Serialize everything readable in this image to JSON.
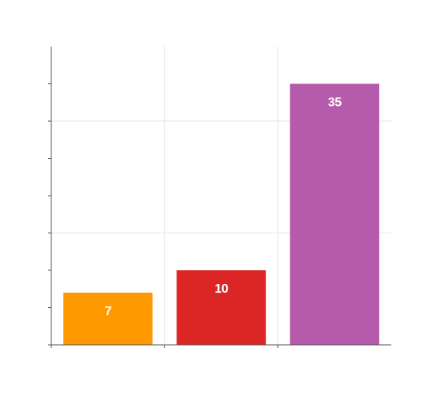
{
  "chart_data": {
    "type": "bar",
    "categories": [
      "",
      "",
      ""
    ],
    "values": [
      7,
      10,
      35
    ],
    "colors": [
      "#ff9900",
      "#dc2626",
      "#b65aab"
    ],
    "title": "",
    "xlabel": "",
    "ylabel": "",
    "ylim": [
      0,
      40
    ],
    "y_major_step": 15,
    "y_minor_step": 5,
    "grid": true,
    "legend": "none",
    "data_labels": [
      "7",
      "10",
      "35"
    ]
  }
}
